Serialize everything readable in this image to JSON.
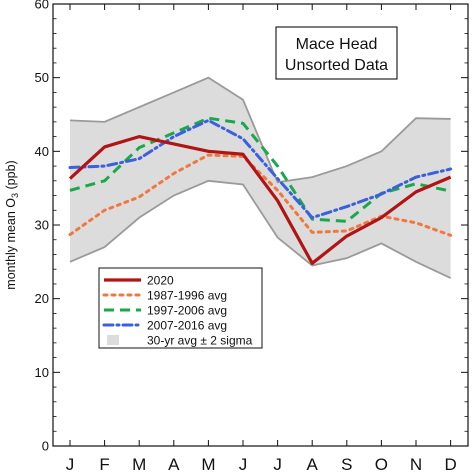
{
  "chart_data": {
    "type": "line",
    "title_lines": [
      "Mace Head",
      "Unsorted Data"
    ],
    "ylabel": "monthly mean O",
    "ylabel_sub": "3",
    "ylabel_unit": " (ppb)",
    "xlabel": "",
    "ylim": [
      0,
      60
    ],
    "yticks": [
      0,
      10,
      20,
      30,
      40,
      50,
      60
    ],
    "categories": [
      "J",
      "F",
      "M",
      "A",
      "M",
      "J",
      "J",
      "A",
      "S",
      "O",
      "N",
      "D"
    ],
    "band": {
      "name": "30-yr avg ± 2 sigma",
      "color": "#dcdcdc",
      "edge_color": "#9a9a9a",
      "upper": [
        44.2,
        44.0,
        46.0,
        48.0,
        50.0,
        47.0,
        35.8,
        36.5,
        38.0,
        40.0,
        44.5,
        44.4
      ],
      "lower": [
        25.0,
        27.0,
        31.0,
        34.0,
        36.0,
        35.5,
        28.3,
        24.5,
        25.5,
        27.5,
        25.0,
        22.8
      ]
    },
    "series": [
      {
        "name": "2020",
        "color": "#b01414",
        "dash": "solid",
        "values": [
          36.3,
          40.6,
          42.0,
          41.0,
          40.0,
          39.6,
          33.3,
          24.8,
          28.5,
          31.0,
          34.5,
          36.5
        ]
      },
      {
        "name": "1987-1996 avg",
        "color": "#f07840",
        "dash": "dot",
        "values": [
          28.7,
          32.0,
          33.8,
          37.0,
          39.5,
          39.3,
          34.7,
          29.0,
          29.2,
          31.2,
          30.3,
          28.6
        ]
      },
      {
        "name": "1997-2006 avg",
        "color": "#1aa84a",
        "dash": "dash",
        "values": [
          34.7,
          36.0,
          40.5,
          42.5,
          44.5,
          43.8,
          38.0,
          30.8,
          30.5,
          34.3,
          35.6,
          34.6
        ]
      },
      {
        "name": "2007-2016 avg",
        "color": "#3a5fe0",
        "dash": "dashdot",
        "values": [
          37.8,
          38.0,
          39.0,
          42.0,
          44.2,
          41.7,
          36.3,
          31.0,
          32.5,
          34.2,
          36.5,
          37.6
        ]
      }
    ],
    "legend_position": "lower-left"
  }
}
